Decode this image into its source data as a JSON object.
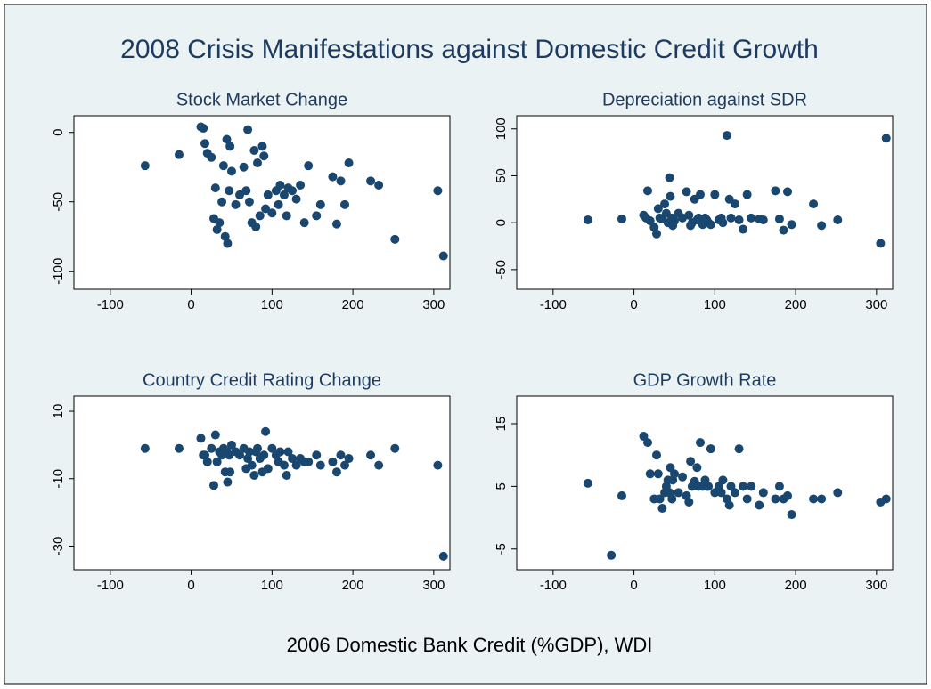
{
  "title": "2008 Crisis Manifestations against Domestic Credit Growth",
  "x_label": "2006 Domestic Bank Credit (%GDP), WDI",
  "chart_data": [
    {
      "type": "scatter",
      "title": "Stock Market Change",
      "color": "#1a476f",
      "x": [
        -57,
        -15,
        15,
        12,
        17,
        20,
        25,
        28,
        30,
        32,
        35,
        38,
        40,
        42,
        44,
        45,
        47,
        48,
        50,
        55,
        60,
        65,
        68,
        70,
        72,
        75,
        78,
        80,
        82,
        85,
        88,
        90,
        92,
        95,
        100,
        105,
        108,
        110,
        115,
        118,
        120,
        125,
        130,
        135,
        140,
        145,
        155,
        160,
        175,
        180,
        185,
        190,
        195,
        222,
        232,
        252,
        305,
        312
      ],
      "values": [
        -24,
        -16,
        3,
        4,
        -8,
        -15,
        -18,
        -62,
        -40,
        -70,
        -65,
        -50,
        -24,
        -75,
        -5,
        -80,
        -42,
        -10,
        -28,
        -52,
        -45,
        -25,
        -42,
        2,
        -50,
        -65,
        -13,
        -68,
        -22,
        -60,
        -10,
        -17,
        -55,
        -45,
        -58,
        -42,
        -52,
        -38,
        -45,
        -60,
        -40,
        -42,
        -48,
        -38,
        -65,
        -24,
        -60,
        -52,
        -32,
        -66,
        -35,
        -52,
        -22,
        -35,
        -38,
        -77,
        -42,
        -89
      ],
      "xlim": [
        -145,
        320
      ],
      "ylim": [
        -113,
        12
      ],
      "xticks": [
        -100,
        0,
        100,
        200,
        300
      ],
      "yticks": [
        0,
        -50,
        -100
      ]
    },
    {
      "type": "scatter",
      "title": "Depreciation against SDR",
      "color": "#1a476f",
      "x": [
        -57,
        -15,
        15,
        12,
        17,
        20,
        25,
        28,
        30,
        32,
        35,
        38,
        40,
        42,
        44,
        45,
        47,
        48,
        50,
        55,
        60,
        65,
        68,
        70,
        72,
        75,
        78,
        80,
        82,
        85,
        88,
        90,
        92,
        95,
        100,
        105,
        108,
        110,
        115,
        118,
        120,
        125,
        130,
        135,
        140,
        145,
        155,
        160,
        175,
        180,
        185,
        190,
        195,
        222,
        232,
        252,
        305,
        312
      ],
      "values": [
        3,
        4,
        5,
        8,
        34,
        2,
        -5,
        -12,
        15,
        5,
        4,
        20,
        10,
        0,
        48,
        28,
        5,
        -3,
        2,
        10,
        5,
        33,
        8,
        -3,
        0,
        25,
        3,
        5,
        30,
        -2,
        5,
        3,
        0,
        -2,
        30,
        3,
        5,
        0,
        93,
        25,
        5,
        20,
        3,
        -7,
        30,
        5,
        4,
        3,
        34,
        4,
        -8,
        33,
        -2,
        20,
        -3,
        3,
        -22,
        90
      ],
      "xlim": [
        -145,
        320
      ],
      "ylim": [
        -71,
        114
      ],
      "xticks": [
        -100,
        0,
        100,
        200,
        300
      ],
      "yticks": [
        100,
        50,
        0,
        -50
      ]
    },
    {
      "type": "scatter",
      "title": "Country Credit Rating Change",
      "color": "#1a476f",
      "x": [
        -57,
        -15,
        15,
        12,
        17,
        20,
        25,
        28,
        30,
        32,
        35,
        38,
        40,
        42,
        44,
        45,
        47,
        48,
        50,
        55,
        60,
        65,
        68,
        70,
        72,
        75,
        78,
        80,
        82,
        85,
        88,
        90,
        92,
        95,
        100,
        105,
        108,
        110,
        115,
        118,
        120,
        125,
        130,
        135,
        140,
        145,
        155,
        160,
        175,
        180,
        185,
        190,
        195,
        222,
        232,
        252,
        305,
        312
      ],
      "values": [
        -1,
        -1,
        -3,
        2,
        -3,
        -5,
        -1,
        -12,
        3,
        -5,
        -2,
        -3,
        -1,
        -8,
        -2,
        -11,
        -3,
        -8,
        0,
        -2,
        -3,
        -1,
        -7,
        -4,
        -2,
        -6,
        -9,
        -2,
        -1,
        -4,
        -8,
        -3,
        4,
        -7,
        -1,
        -3,
        -5,
        -2,
        -6,
        -9,
        -2,
        -4,
        -6,
        -4,
        -5,
        -5,
        -3,
        -6,
        -5,
        -8,
        -3,
        -6,
        -4,
        -3,
        -6,
        -1,
        -6,
        -33
      ],
      "xlim": [
        -145,
        320
      ],
      "ylim": [
        -37,
        14.5
      ],
      "xticks": [
        -100,
        0,
        100,
        200,
        300
      ],
      "yticks": [
        10,
        -10,
        -30
      ]
    },
    {
      "type": "scatter",
      "title": "GDP Growth Rate",
      "color": "#1a476f",
      "x": [
        -57,
        -15,
        -28,
        12,
        17,
        20,
        25,
        28,
        30,
        32,
        35,
        38,
        40,
        42,
        44,
        45,
        47,
        48,
        50,
        55,
        60,
        65,
        68,
        70,
        72,
        75,
        78,
        80,
        82,
        85,
        88,
        90,
        92,
        95,
        100,
        105,
        108,
        110,
        115,
        118,
        120,
        125,
        130,
        135,
        140,
        145,
        155,
        160,
        175,
        180,
        185,
        190,
        195,
        222,
        232,
        252,
        305,
        312
      ],
      "values": [
        5.5,
        3.5,
        -6,
        13,
        12,
        7,
        3,
        10,
        7,
        3,
        1.5,
        4,
        5,
        6,
        4,
        8,
        3,
        6,
        7,
        4,
        6.5,
        3.5,
        2.5,
        9,
        5,
        5.8,
        8,
        5,
        12,
        5,
        6,
        5,
        5,
        11,
        4,
        5,
        4,
        6,
        3,
        2,
        5,
        4,
        11,
        5,
        3,
        5,
        2,
        4,
        3,
        5,
        3,
        3.5,
        0.5,
        3,
        3,
        4,
        2.5,
        3
      ],
      "xlim": [
        -145,
        320
      ],
      "ylim": [
        -8.3,
        19.4
      ],
      "xticks": [
        -100,
        0,
        100,
        200,
        300
      ],
      "yticks": [
        15,
        5,
        -5
      ]
    }
  ]
}
